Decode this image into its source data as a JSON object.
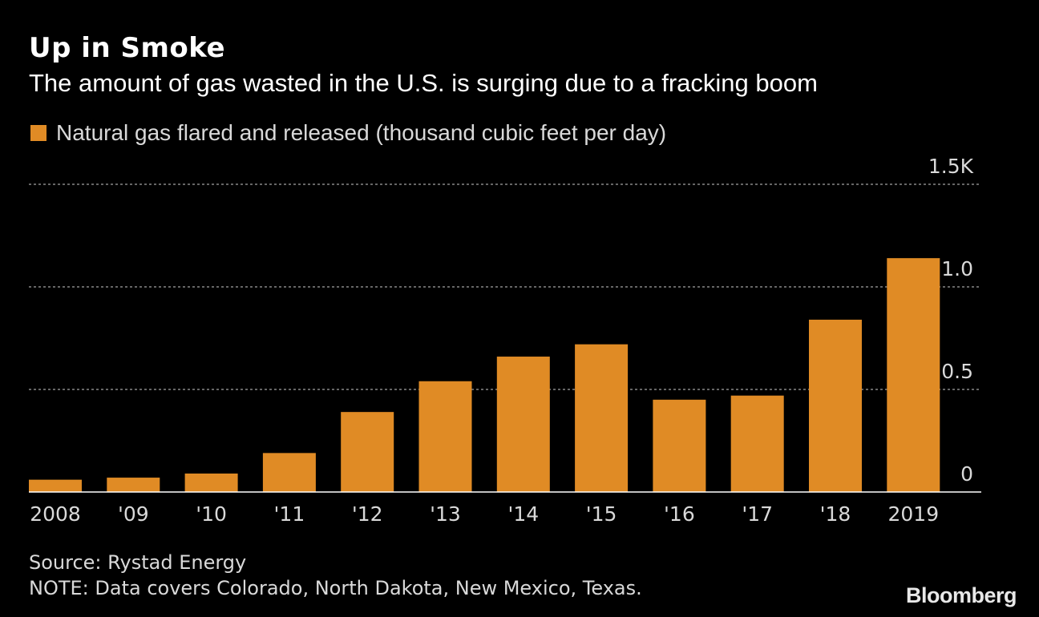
{
  "title": "Up in Smoke",
  "subtitle": "The amount of gas wasted in the U.S. is surging due to a fracking boom",
  "legend": {
    "label": "Natural gas flared and released (thousand cubic feet per day)",
    "color": "#e08b25"
  },
  "source": "Source: Rystad Energy",
  "note": "NOTE: Data covers Colorado, North Dakota, New Mexico, Texas.",
  "brand": "Bloomberg",
  "chart_data": {
    "type": "bar",
    "categories": [
      "2008",
      "'09",
      "'10",
      "'11",
      "'12",
      "'13",
      "'14",
      "'15",
      "'16",
      "'17",
      "'18",
      "2019"
    ],
    "series": [
      {
        "name": "Natural gas flared and released (thousand cubic feet per day)",
        "values": [
          0.06,
          0.07,
          0.09,
          0.19,
          0.39,
          0.54,
          0.66,
          0.72,
          0.45,
          0.47,
          0.84,
          1.14
        ]
      }
    ],
    "ylim": [
      0,
      1.5
    ],
    "yticks": [
      {
        "value": 0,
        "label": "0"
      },
      {
        "value": 0.5,
        "label": "0.5"
      },
      {
        "value": 1.0,
        "label": "1.0"
      },
      {
        "value": 1.5,
        "label": "1.5K"
      }
    ],
    "grid": true,
    "bar_color": "#e08b25",
    "grid_color": "#888888"
  }
}
